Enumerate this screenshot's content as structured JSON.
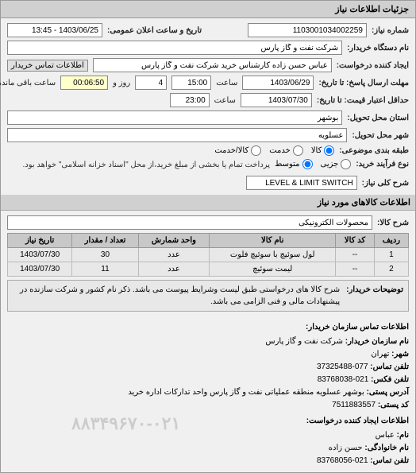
{
  "panel_title": "جزئیات اطلاعات نیاز",
  "fields": {
    "req_no_label": "شماره نیاز:",
    "req_no": "1103001034002259",
    "pub_date_label": "تاریخ و ساعت اعلان عمومی:",
    "pub_date": "1403/06/25 - 13:45",
    "buyer_org_label": "نام دستگاه خریدار:",
    "buyer_org": "شرکت نفت و گاز پارس",
    "creator_label": "ایجاد کننده درخواست:",
    "creator": "عباس حسن زاده کارشناس خرید شرکت نفت و گاز پارس",
    "buyer_contact_btn": "اطلاعات تماس خریدار",
    "resp_deadline_label": "مهلت ارسال پاسخ: تا تاریخ:",
    "resp_date": "1403/06/29",
    "resp_hour_label": "ساعت",
    "resp_hour": "15:00",
    "resp_days_label": "روز و",
    "resp_days": "4",
    "remaining_label": "ساعت باقی مانده",
    "remaining": "00:06:50",
    "price_deadline_label": "حداقل اعتبار قیمت: تا تاریخ:",
    "price_date": "1403/07/30",
    "price_hour_label": "ساعت",
    "price_hour": "23:00",
    "province_label": "استان محل تحویل:",
    "province": "بوشهر",
    "city_label": "شهر محل تحویل:",
    "city": "عسلویه",
    "subject_type_label": "طبقه بندی موضوعی:",
    "subject_goods": "کالا",
    "subject_service": "خدمت",
    "subject_both": "کالا/خدمت",
    "proc_type_label": "نوع فرآیند خرید:",
    "proc_small": "جزیی",
    "proc_medium": "متوسط",
    "proc_note": "پرداخت تمام یا بخشی از مبلغ خرید،از محل \"اسناد خزانه اسلامی\" خواهد بود.",
    "overall_desc_label": "شرح کلی نیاز:",
    "overall_desc": "LEVEL & LIMIT SWITCH",
    "items_title": "اطلاعات کالاهای مورد نیاز",
    "item_cat_label": "شرح کالا:",
    "item_cat": "محصولات الکترونیکی"
  },
  "table": {
    "columns": [
      "ردیف",
      "کد کالا",
      "نام کالا",
      "واحد شمارش",
      "تعداد / مقدار",
      "تاریخ نیاز"
    ],
    "rows": [
      [
        "1",
        "--",
        "لول سوئیچ با سوئیچ فلوت",
        "عدد",
        "30",
        "1403/07/30"
      ],
      [
        "2",
        "--",
        "لیمت سوئیچ",
        "عدد",
        "11",
        "1403/07/30"
      ]
    ]
  },
  "buyer_desc": {
    "label": "توضیحات خریدار:",
    "text": "شرح کالا های درخواستی طبق لیست وشرایط پیوست می باشد. ذکر نام کشور و شرکت سازنده در پیشنهادات مالی و فنی الزامی می باشد."
  },
  "contact": {
    "title": "اطلاعات تماس سازمان خریدار:",
    "org_name_label": "نام سازمان خریدار:",
    "org_name": "شرکت نفت و گاز پارس",
    "city_label": "شهر:",
    "city": "تهران",
    "tel_label": "تلفن تماس:",
    "tel": "077-37325488",
    "fax_label": "تلفن فکس:",
    "fax": "021-83768038",
    "addr_label": "آدرس پستی:",
    "addr": "بوشهر عسلویه منطقه عملیاتی نفت و گاز پارس واحد تدارکات اداره خرید",
    "zip_label": "کد پستی:",
    "zip": "7511883557",
    "creator_title": "اطلاعات ایجاد کننده درخواست:",
    "fname_label": "نام:",
    "fname": "عباس",
    "lname_label": "نام خانوادگی:",
    "lname": "حسن زاده",
    "phone_label": "تلفن تماس:",
    "phone": "021-83768056"
  },
  "watermark": "۸۸۳۴۹۶۷۰-۰۲۱",
  "colors": {
    "panel_bg": "#f0f0f0",
    "header_bg": "#d0d0d0",
    "border": "#9a9a9a",
    "input_border": "#888",
    "th_bg": "#c8c8c8",
    "td_bg": "#e8e8e8"
  }
}
